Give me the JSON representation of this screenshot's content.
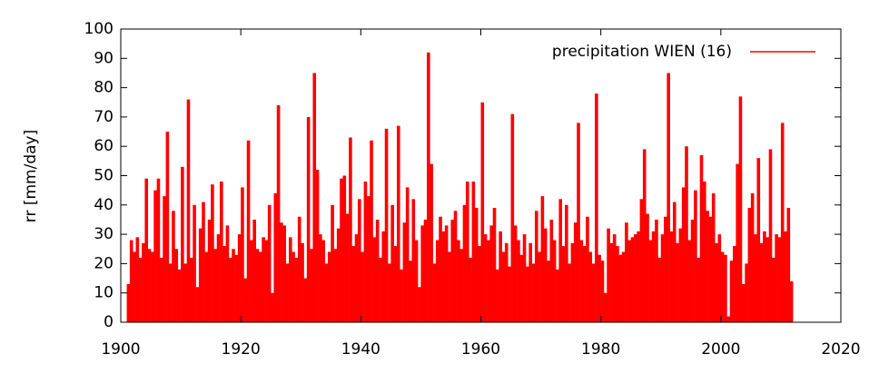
{
  "chart_data": {
    "type": "impulse",
    "ylabel": "rr [mm/day]",
    "color": "#ff0000",
    "legend": "top-right",
    "xlim": [
      1900,
      2020
    ],
    "xticks": [
      1900,
      1920,
      1940,
      1960,
      1980,
      2000,
      2020
    ],
    "ylim": [
      0,
      100
    ],
    "yticks": [
      0,
      10,
      20,
      30,
      40,
      50,
      60,
      70,
      80,
      90,
      100
    ],
    "series": [
      {
        "name": "precipitation WIEN (16)",
        "color": "#ff0000",
        "x": [
          1901,
          1901.5,
          1902,
          1902.5,
          1903,
          1903.5,
          1904,
          1904.5,
          1905,
          1905.5,
          1906,
          1906.5,
          1907,
          1907.5,
          1908,
          1908.5,
          1909,
          1909.5,
          1910,
          1910.5,
          1911,
          1911.5,
          1912,
          1912.5,
          1913,
          1913.5,
          1914,
          1914.5,
          1915,
          1915.5,
          1916,
          1916.5,
          1917,
          1917.5,
          1918,
          1918.5,
          1919,
          1919.5,
          1920,
          1920.5,
          1921,
          1921.5,
          1922,
          1922.5,
          1923,
          1923.5,
          1924,
          1924.5,
          1925,
          1925.5,
          1926,
          1926.5,
          1927,
          1927.5,
          1928,
          1928.5,
          1929,
          1929.5,
          1930,
          1930.5,
          1931,
          1931.5,
          1932,
          1932.5,
          1933,
          1933.5,
          1934,
          1934.5,
          1935,
          1935.5,
          1936,
          1936.5,
          1937,
          1937.5,
          1938,
          1938.5,
          1939,
          1939.5,
          1940,
          1940.5,
          1941,
          1941.5,
          1942,
          1942.5,
          1943,
          1943.5,
          1944,
          1944.5,
          1945,
          1945.5,
          1946,
          1946.5,
          1947,
          1947.5,
          1948,
          1948.5,
          1949,
          1949.5,
          1950,
          1950.5,
          1951,
          1951.5,
          1952,
          1952.5,
          1953,
          1953.5,
          1954,
          1954.5,
          1955,
          1955.5,
          1956,
          1956.5,
          1957,
          1957.5,
          1958,
          1958.5,
          1959,
          1959.5,
          1960,
          1960.5,
          1961,
          1961.5,
          1962,
          1962.5,
          1963,
          1963.5,
          1964,
          1964.5,
          1965,
          1965.5,
          1966,
          1966.5,
          1967,
          1967.5,
          1968,
          1968.5,
          1969,
          1969.5,
          1970,
          1970.5,
          1971,
          1971.5,
          1972,
          1972.5,
          1973,
          1973.5,
          1974,
          1974.5,
          1975,
          1975.5,
          1976,
          1976.5,
          1977,
          1977.5,
          1978,
          1978.5,
          1979,
          1979.5,
          1980,
          1980.5,
          1981,
          1981.5,
          1982,
          1982.5,
          1983,
          1983.5,
          1984,
          1984.5,
          1985,
          1985.5,
          1986,
          1986.5,
          1987,
          1987.5,
          1988,
          1988.5,
          1989,
          1989.5,
          1990,
          1990.5,
          1991,
          1991.5,
          1992,
          1992.5,
          1993,
          1993.5,
          1994,
          1994.5,
          1995,
          1995.5,
          1996,
          1996.5,
          1997,
          1997.5,
          1998,
          1998.5,
          1999,
          1999.5,
          2000,
          2000.5,
          2001,
          2001.5,
          2002,
          2002.5,
          2003,
          2003.5,
          2004,
          2004.5,
          2005,
          2005.5,
          2006,
          2006.5,
          2007,
          2007.5,
          2008,
          2008.5,
          2009,
          2009.5,
          2010,
          2010.5,
          2011,
          2011.5
        ],
        "values": [
          13,
          28,
          24,
          29,
          22,
          27,
          49,
          25,
          24,
          45,
          49,
          22,
          43,
          65,
          20,
          38,
          25,
          18,
          53,
          20,
          76,
          22,
          40,
          12,
          32,
          41,
          24,
          35,
          47,
          25,
          30,
          48,
          26,
          33,
          22,
          25,
          23,
          30,
          46,
          15,
          62,
          28,
          35,
          25,
          24,
          29,
          28,
          40,
          10,
          44,
          74,
          34,
          33,
          20,
          29,
          24,
          22,
          36,
          27,
          15,
          70,
          25,
          85,
          52,
          30,
          28,
          20,
          24,
          40,
          25,
          32,
          49,
          50,
          37,
          63,
          26,
          30,
          42,
          24,
          48,
          43,
          62,
          29,
          35,
          22,
          31,
          66,
          20,
          40,
          26,
          67,
          18,
          34,
          46,
          21,
          42,
          28,
          12,
          33,
          35,
          92,
          54,
          20,
          28,
          36,
          31,
          33,
          24,
          35,
          38,
          28,
          25,
          40,
          48,
          22,
          48,
          39,
          26,
          75,
          30,
          28,
          33,
          39,
          18,
          31,
          24,
          27,
          19,
          71,
          33,
          28,
          23,
          30,
          19,
          27,
          20,
          38,
          24,
          43,
          32,
          21,
          35,
          28,
          18,
          42,
          26,
          40,
          20,
          27,
          34,
          68,
          28,
          26,
          36,
          24,
          20,
          78,
          23,
          21,
          10,
          32,
          27,
          30,
          26,
          23,
          24,
          34,
          28,
          29,
          30,
          31,
          42,
          59,
          37,
          28,
          31,
          35,
          22,
          30,
          36,
          85,
          31,
          41,
          27,
          32,
          46,
          60,
          28,
          35,
          45,
          22,
          57,
          48,
          38,
          36,
          44,
          27,
          30,
          24,
          23,
          2,
          21,
          26,
          54,
          77,
          13,
          20,
          39,
          44,
          30,
          56,
          27,
          31,
          29,
          59,
          22,
          30,
          29,
          68,
          31,
          39,
          14
        ]
      }
    ]
  }
}
